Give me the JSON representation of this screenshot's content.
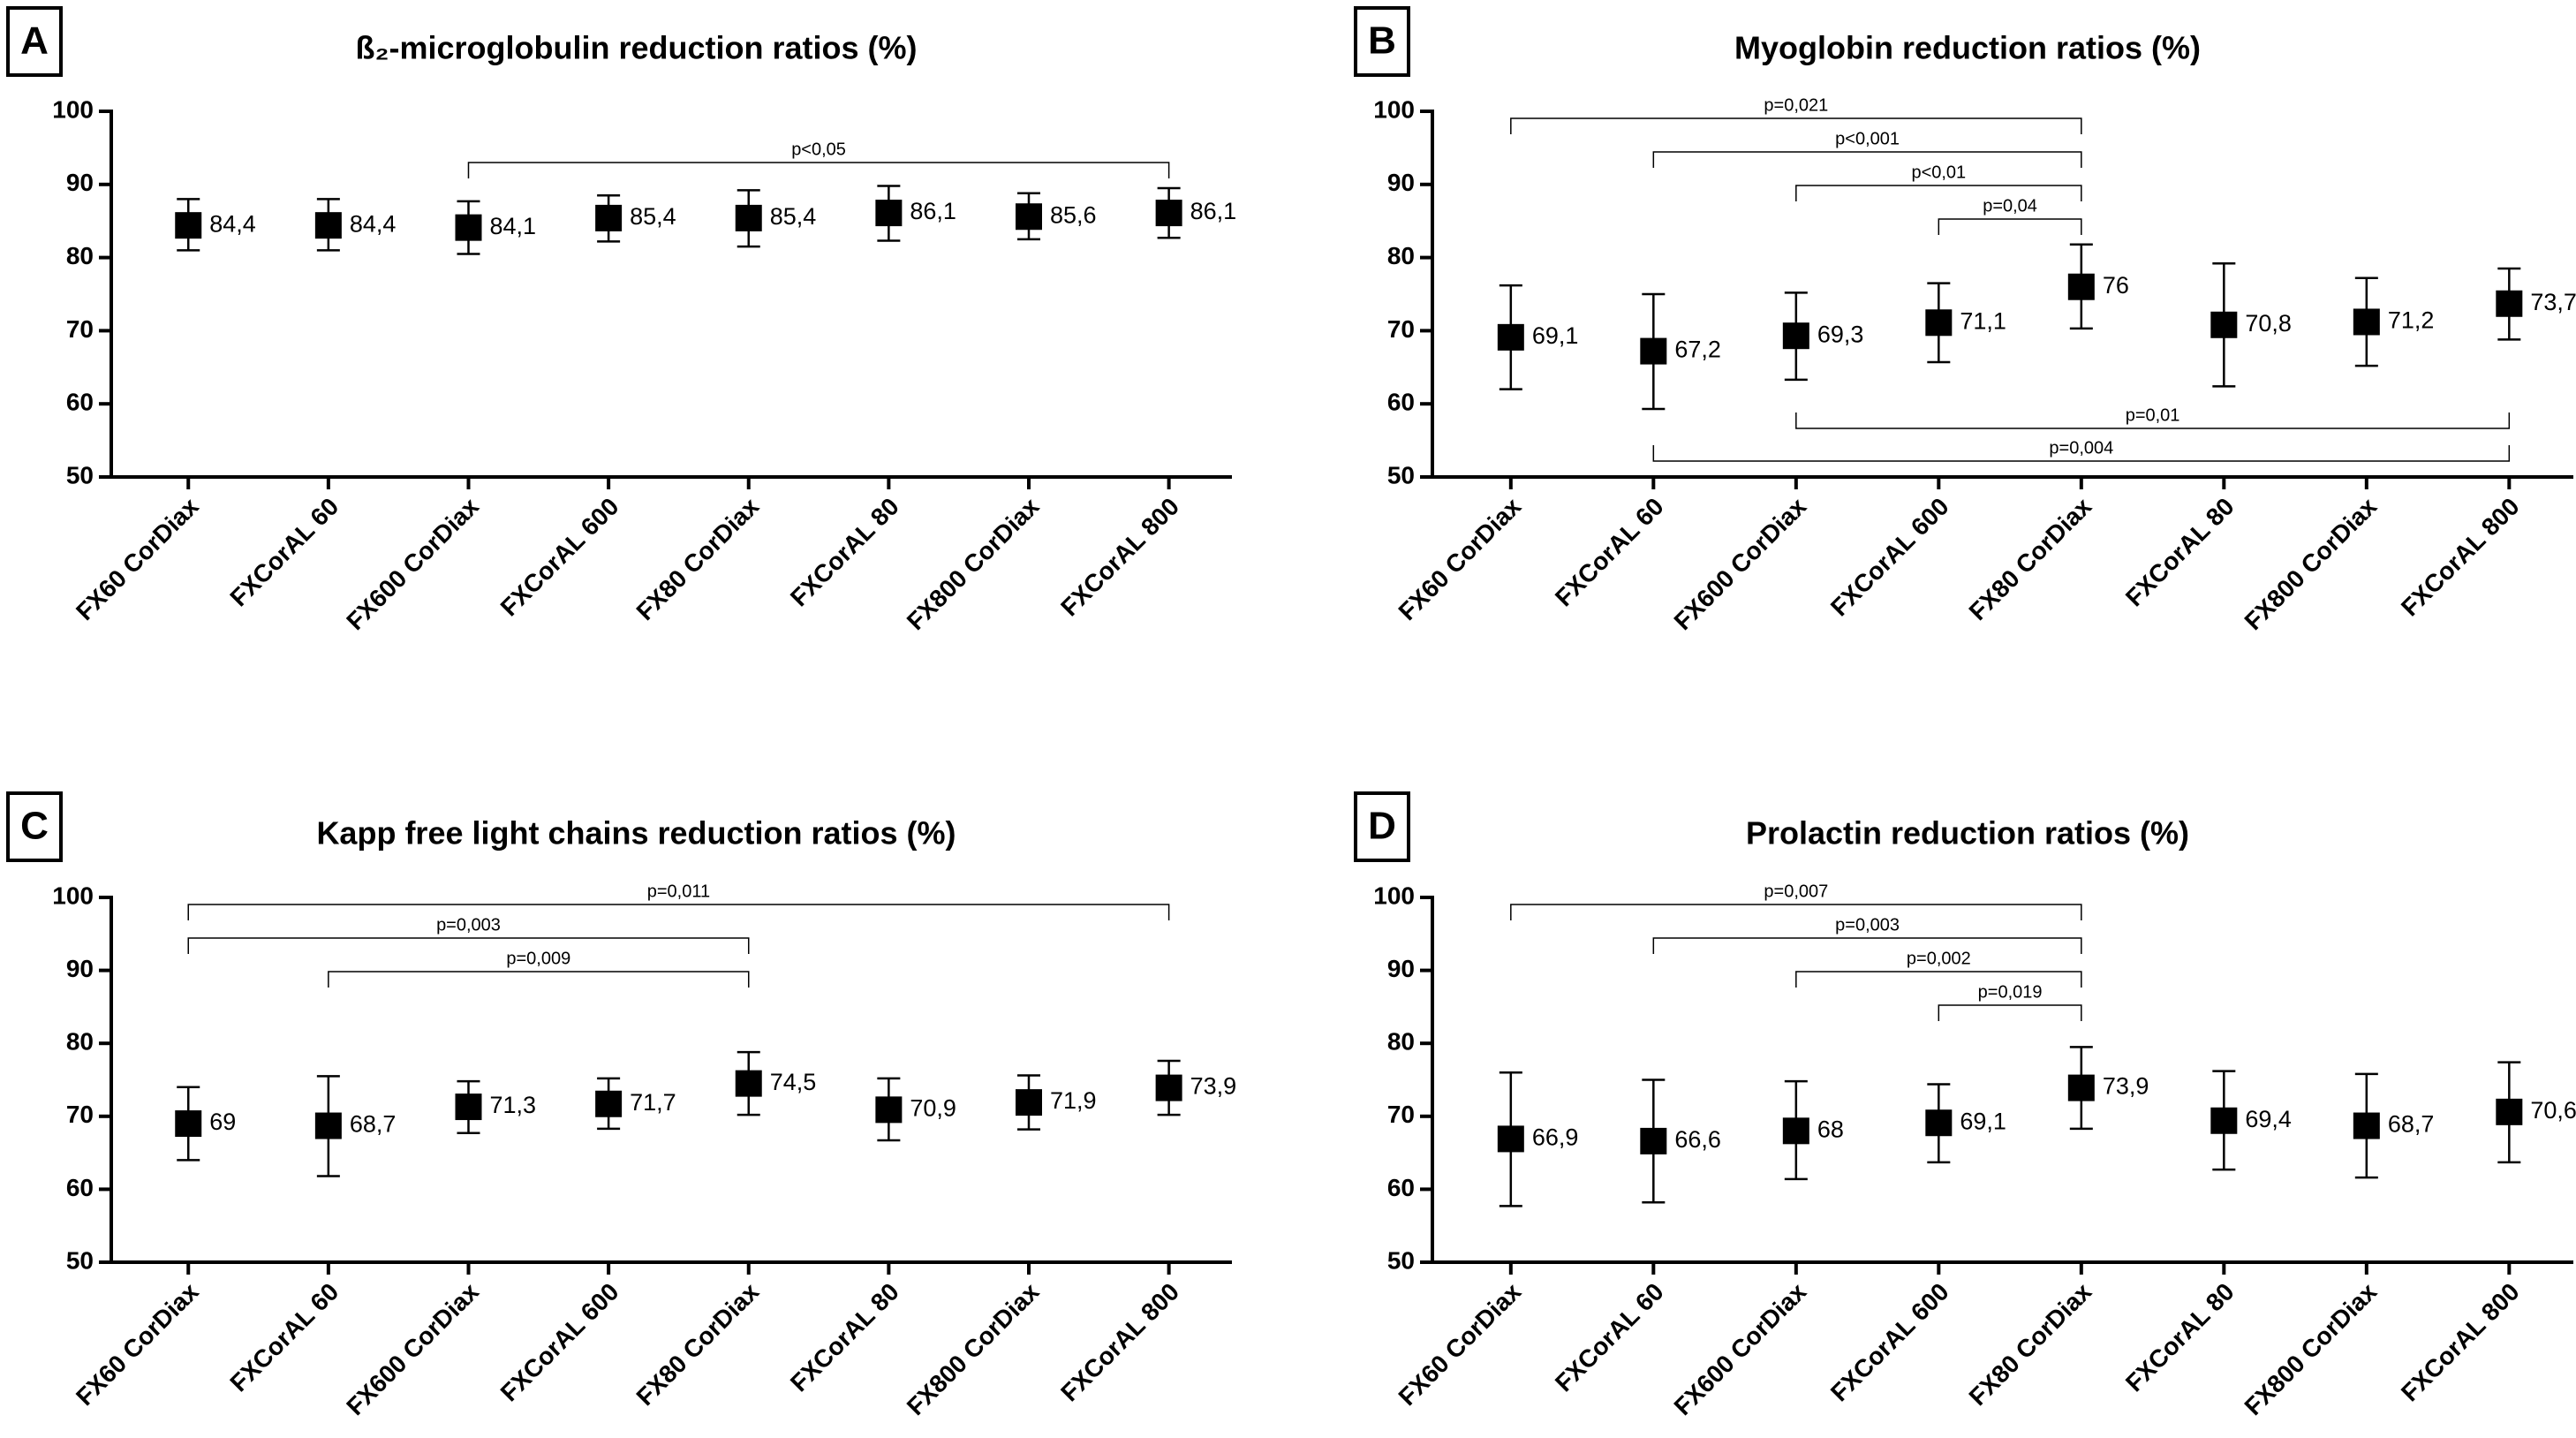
{
  "chart_data": [
    {
      "type": "errorbar",
      "panel_label": "A",
      "title": "ß₂-microglobulin reduction ratios (%)",
      "categories": [
        "FX60 CorDiax",
        "FXCorAL 60",
        "FX600 CorDiax",
        "FXCorAL 600",
        "FX80 CorDiax",
        "FXCorAL 80",
        "FX800 CorDiax",
        "FXCorAL 800"
      ],
      "values": [
        84.4,
        84.4,
        84.1,
        85.4,
        85.4,
        86.1,
        85.6,
        86.1
      ],
      "value_labels": [
        "84,4",
        "84,4",
        "84,1",
        "85,4",
        "85,4",
        "86,1",
        "85,6",
        "86,1"
      ],
      "lower": [
        81,
        81,
        80.5,
        82.2,
        81.5,
        82.3,
        82.5,
        82.7
      ],
      "upper": [
        88,
        88,
        87.7,
        88.5,
        89.2,
        89.8,
        88.8,
        89.5
      ],
      "color": "#000000",
      "ylim": [
        50,
        100
      ],
      "yticks": [
        50,
        60,
        70,
        80,
        90,
        100
      ],
      "brackets": [
        {
          "label": "p<0,05",
          "from": 2,
          "to": 7,
          "side": "top"
        }
      ]
    },
    {
      "type": "errorbar",
      "panel_label": "B",
      "title": "Myoglobin reduction ratios (%)",
      "categories": [
        "FX60 CorDiax",
        "FXCorAL 60",
        "FX600 CorDiax",
        "FXCorAL 600",
        "FX80 CorDiax",
        "FXCorAL 80",
        "FX800 CorDiax",
        "FXCorAL 800"
      ],
      "values": [
        69.1,
        67.2,
        69.3,
        71.1,
        76,
        70.8,
        71.2,
        73.7
      ],
      "value_labels": [
        "69,1",
        "67,2",
        "69,3",
        "71,1",
        "76",
        "70,8",
        "71,2",
        "73,7"
      ],
      "lower": [
        62,
        59.3,
        63.3,
        65.7,
        70.3,
        62.4,
        65.2,
        68.8
      ],
      "upper": [
        76.2,
        75,
        75.2,
        76.5,
        81.8,
        79.2,
        77.2,
        78.5
      ],
      "color": "#000000",
      "ylim": [
        50,
        100
      ],
      "yticks": [
        50,
        60,
        70,
        80,
        90,
        100
      ],
      "brackets": [
        {
          "label": "p=0,021",
          "from": 0,
          "to": 4,
          "side": "top"
        },
        {
          "label": "p<0,001",
          "from": 1,
          "to": 4,
          "side": "top"
        },
        {
          "label": "p<0,01",
          "from": 2,
          "to": 4,
          "side": "top"
        },
        {
          "label": "p=0,04",
          "from": 3,
          "to": 4,
          "side": "top"
        },
        {
          "label": "p=0,01",
          "from": 2,
          "to": 7,
          "side": "bottom"
        },
        {
          "label": "p=0,004",
          "from": 1,
          "to": 7,
          "side": "bottom"
        }
      ]
    },
    {
      "type": "errorbar",
      "panel_label": "C",
      "title": "Kapp free light chains reduction ratios (%)",
      "categories": [
        "FX60 CorDiax",
        "FXCorAL 60",
        "FX600 CorDiax",
        "FXCorAL 600",
        "FX80 CorDiax",
        "FXCorAL 80",
        "FX800 CorDiax",
        "FXCorAL 800"
      ],
      "values": [
        69,
        68.7,
        71.3,
        71.7,
        74.5,
        70.9,
        71.9,
        73.9
      ],
      "value_labels": [
        "69",
        "68,7",
        "71,3",
        "71,7",
        "74,5",
        "70,9",
        "71,9",
        "73,9"
      ],
      "lower": [
        64,
        61.8,
        67.7,
        68.3,
        70.2,
        66.7,
        68.2,
        70.2
      ],
      "upper": [
        74,
        75.5,
        74.8,
        75.2,
        78.8,
        75.2,
        75.6,
        77.6
      ],
      "color": "#000000",
      "ylim": [
        50,
        100
      ],
      "yticks": [
        50,
        60,
        70,
        80,
        90,
        100
      ],
      "brackets": [
        {
          "label": "p=0,011",
          "from": 0,
          "to": 7,
          "side": "top"
        },
        {
          "label": "p=0,003",
          "from": 0,
          "to": 4,
          "side": "top"
        },
        {
          "label": "p=0,009",
          "from": 1,
          "to": 4,
          "side": "top"
        }
      ]
    },
    {
      "type": "errorbar",
      "panel_label": "D",
      "title": "Prolactin reduction ratios (%)",
      "categories": [
        "FX60 CorDiax",
        "FXCorAL 60",
        "FX600 CorDiax",
        "FXCorAL 600",
        "FX80 CorDiax",
        "FXCorAL 80",
        "FX800 CorDiax",
        "FXCorAL 800"
      ],
      "values": [
        66.9,
        66.6,
        68,
        69.1,
        73.9,
        69.4,
        68.7,
        70.6
      ],
      "value_labels": [
        "66,9",
        "66,6",
        "68",
        "69,1",
        "73,9",
        "69,4",
        "68,7",
        "70,6"
      ],
      "lower": [
        57.7,
        58.2,
        61.4,
        63.7,
        68.3,
        62.7,
        61.6,
        63.7
      ],
      "upper": [
        76,
        75,
        74.8,
        74.4,
        79.5,
        76.2,
        75.8,
        77.4
      ],
      "color": "#000000",
      "ylim": [
        50,
        100
      ],
      "yticks": [
        50,
        60,
        70,
        80,
        90,
        100
      ],
      "brackets": [
        {
          "label": "p=0,007",
          "from": 0,
          "to": 4,
          "side": "top"
        },
        {
          "label": "p=0,003",
          "from": 1,
          "to": 4,
          "side": "top"
        },
        {
          "label": "p=0,002",
          "from": 2,
          "to": 4,
          "side": "top"
        },
        {
          "label": "p=0,019",
          "from": 3,
          "to": 4,
          "side": "top"
        }
      ]
    }
  ]
}
